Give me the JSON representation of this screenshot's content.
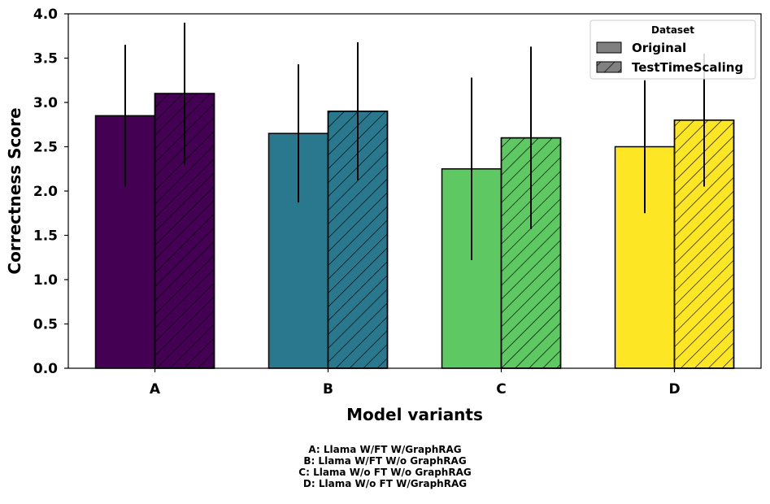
{
  "chart_data": {
    "type": "bar",
    "xlabel": "Model variants",
    "ylabel": "Correctness Score",
    "ylim": [
      0,
      4.0
    ],
    "yticks": [
      "0.0",
      "0.5",
      "1.0",
      "1.5",
      "2.0",
      "2.5",
      "3.0",
      "3.5",
      "4.0"
    ],
    "categories": [
      "A",
      "B",
      "C",
      "D"
    ],
    "category_colors": [
      "#440154",
      "#2a788e",
      "#5ec962",
      "#fde725"
    ],
    "series": [
      {
        "name": "Original",
        "hatch": false,
        "values": [
          2.85,
          2.65,
          2.25,
          2.5
        ],
        "err": [
          0.8,
          0.78,
          1.03,
          0.75
        ]
      },
      {
        "name": "TestTimeScaling",
        "hatch": true,
        "values": [
          3.1,
          2.9,
          2.6,
          2.8
        ],
        "err": [
          0.8,
          0.78,
          1.03,
          0.75
        ]
      }
    ],
    "legend": {
      "title": "Dataset",
      "position": "top-right"
    },
    "grid": false
  },
  "captions": [
    "A: Llama W/FT W/GraphRAG",
    "B: Llama W/FT W/o GraphRAG",
    "C: Llama W/o FT W/o GraphRAG",
    "D: Llama W/o FT W/GraphRAG"
  ]
}
